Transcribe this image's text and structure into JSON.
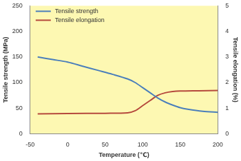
{
  "chart_data": {
    "type": "line",
    "x_label": "Temperature (℃)",
    "y_label": "Tensile strength (MPa)",
    "y2_label": "Tensile elongation (%)",
    "xlim": [
      -50,
      200
    ],
    "xticks": [
      -50,
      0,
      50,
      100,
      150,
      200
    ],
    "ylim": [
      0,
      250
    ],
    "yticks": [
      0,
      50,
      100,
      150,
      200,
      250
    ],
    "y2lim": [
      0,
      5
    ],
    "y2ticks": [
      0,
      1,
      2,
      3,
      4,
      5
    ],
    "grid": false,
    "legend": "upper left",
    "series": [
      {
        "name": "Tensile strength",
        "color": "#4a7ebb",
        "x": [
          -40,
          -20,
          0,
          20,
          40,
          60,
          80,
          90,
          100,
          110,
          120,
          130,
          140,
          150,
          160,
          180,
          200
        ],
        "values": [
          150,
          145,
          140,
          132,
          124,
          116,
          107,
          100,
          90,
          80,
          70,
          62,
          56,
          51,
          48,
          44,
          42
        ]
      },
      {
        "name": "Tensile elongation",
        "color": "#b5483c",
        "axis": "y2",
        "x": [
          -40,
          0,
          50,
          80,
          90,
          100,
          110,
          120,
          130,
          140,
          150,
          175,
          200
        ],
        "values": [
          0.78,
          0.79,
          0.8,
          0.82,
          0.9,
          1.1,
          1.3,
          1.5,
          1.6,
          1.65,
          1.67,
          1.68,
          1.69
        ]
      }
    ]
  }
}
